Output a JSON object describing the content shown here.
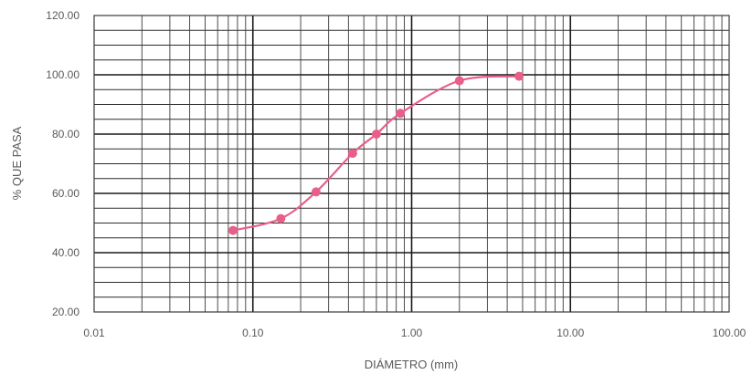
{
  "chart_data": {
    "type": "line",
    "title": "",
    "xlabel": "DIÁMETRO (mm)",
    "ylabel": "% QUE PASA",
    "x_scale": "log",
    "xlim": [
      0.01,
      100
    ],
    "ylim": [
      20,
      120
    ],
    "x_ticks": [
      "0.01",
      "0.10",
      "1.00",
      "10.00",
      "100.00"
    ],
    "y_ticks": [
      "20.00",
      "40.00",
      "60.00",
      "80.00",
      "100.00",
      "120.00"
    ],
    "grid": true,
    "legend": "none",
    "series": [
      {
        "color": "#e8608a",
        "marker": "circle",
        "smooth": true,
        "x": [
          0.075,
          0.15,
          0.25,
          0.425,
          0.6,
          0.85,
          2.0,
          4.75
        ],
        "y": [
          47.5,
          51.5,
          60.5,
          73.5,
          80.0,
          87.0,
          98.0,
          99.5
        ]
      }
    ]
  }
}
